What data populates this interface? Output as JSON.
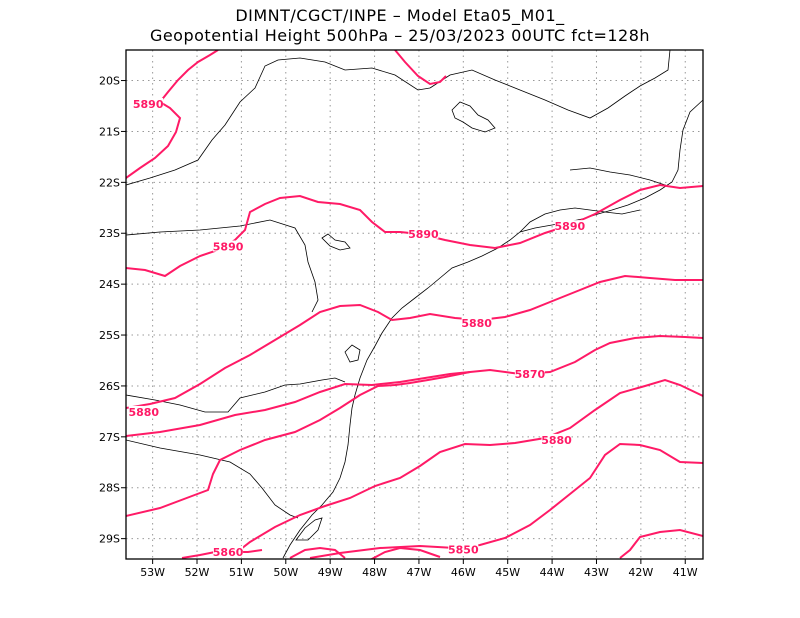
{
  "header": {
    "line1": "DIMNT/CGCT/INPE –  Model Eta05_M01_",
    "line2": "Geopotential Height 500hPa –  25/03/2023 00UTC fct=128h"
  },
  "map": {
    "lon_range": [
      -53.6,
      -40.6
    ],
    "lat_range": [
      -29.4,
      -19.4
    ],
    "lon_ticks": [
      -53,
      -52,
      -51,
      -50,
      -49,
      -48,
      -47,
      -46,
      -45,
      -44,
      -43,
      -42,
      -41
    ],
    "lon_tick_labels": [
      "53W",
      "52W",
      "51W",
      "50W",
      "49W",
      "48W",
      "47W",
      "46W",
      "45W",
      "44W",
      "43W",
      "42W",
      "41W"
    ],
    "lat_ticks": [
      -20,
      -21,
      -22,
      -23,
      -24,
      -25,
      -26,
      -27,
      -28,
      -29
    ],
    "lat_tick_labels": [
      "20S",
      "21S",
      "22S",
      "23S",
      "24S",
      "25S",
      "26S",
      "27S",
      "28S",
      "29S"
    ],
    "contour_color": "#ff1a66",
    "contour_labels": [
      {
        "text": "5890",
        "lon": -53.1,
        "lat": -20.5
      },
      {
        "text": "5890",
        "lon": -51.3,
        "lat": -23.3
      },
      {
        "text": "5890",
        "lon": -46.9,
        "lat": -23.05
      },
      {
        "text": "5890",
        "lon": -43.6,
        "lat": -22.9
      },
      {
        "text": "5880",
        "lon": -53.2,
        "lat": -26.55
      },
      {
        "text": "5880",
        "lon": -45.7,
        "lat": -24.8
      },
      {
        "text": "5880",
        "lon": -43.9,
        "lat": -27.1
      },
      {
        "text": "5870",
        "lon": -44.5,
        "lat": -25.8
      },
      {
        "text": "5860",
        "lon": -51.3,
        "lat": -29.3
      },
      {
        "text": "5850",
        "lon": -46.0,
        "lat": -29.25
      }
    ]
  }
}
